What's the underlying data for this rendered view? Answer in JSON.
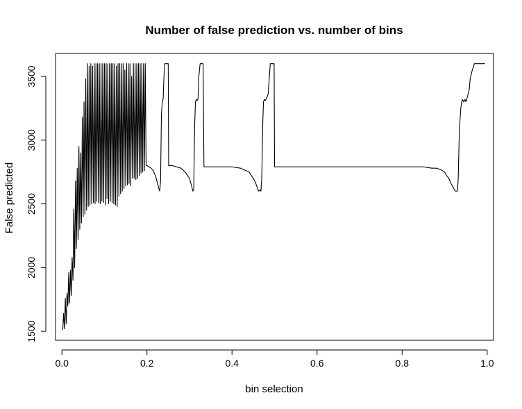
{
  "chart_data": {
    "type": "line",
    "title": "Number of false prediction vs. number of bins",
    "xlabel": "bin selection",
    "ylabel": "False predicted",
    "xlim": [
      -0.015,
      1.015
    ],
    "ylim": [
      1430,
      3680
    ],
    "x_ticks": [
      0.0,
      0.2,
      0.4,
      0.6,
      0.8,
      1.0
    ],
    "x_tick_labels": [
      "0.0",
      "0.2",
      "0.4",
      "0.6",
      "0.8",
      "1.0"
    ],
    "y_ticks": [
      1500,
      2000,
      2500,
      3000,
      3500
    ],
    "y_tick_labels": [
      "1500",
      "2000",
      "2500",
      "3000",
      "3500"
    ],
    "grid": false,
    "legend": "none",
    "line_color": "#000000",
    "series": [
      {
        "x": [
          0.002,
          0.004,
          0.006,
          0.008,
          0.01,
          0.012,
          0.014,
          0.016,
          0.018,
          0.02,
          0.022,
          0.024,
          0.026,
          0.028,
          0.03,
          0.032,
          0.034,
          0.036,
          0.038,
          0.04,
          0.042,
          0.044,
          0.046,
          0.048,
          0.05,
          0.052,
          0.054,
          0.056,
          0.058,
          0.06,
          0.062,
          0.064,
          0.066,
          0.068,
          0.07,
          0.072,
          0.074,
          0.076,
          0.078,
          0.08,
          0.082,
          0.084,
          0.086,
          0.088,
          0.09,
          0.092,
          0.094,
          0.096,
          0.098,
          0.1,
          0.102,
          0.104,
          0.106,
          0.108,
          0.11,
          0.112,
          0.114,
          0.116,
          0.118,
          0.12,
          0.122,
          0.124,
          0.126,
          0.128,
          0.13,
          0.132,
          0.134,
          0.136,
          0.138,
          0.14,
          0.142,
          0.144,
          0.146,
          0.148,
          0.15,
          0.152,
          0.154,
          0.156,
          0.158,
          0.16,
          0.162,
          0.164,
          0.166,
          0.168,
          0.17,
          0.172,
          0.174,
          0.176,
          0.178,
          0.18,
          0.182,
          0.184,
          0.186,
          0.188,
          0.19,
          0.192,
          0.194,
          0.196,
          0.198,
          0.2,
          0.205,
          0.21,
          0.215,
          0.22,
          0.225,
          0.228,
          0.23,
          0.232,
          0.234,
          0.236,
          0.238,
          0.24,
          0.242,
          0.245,
          0.248,
          0.25,
          0.251,
          0.26,
          0.27,
          0.28,
          0.29,
          0.3,
          0.305,
          0.308,
          0.31,
          0.312,
          0.314,
          0.316,
          0.318,
          0.32,
          0.322,
          0.325,
          0.328,
          0.332,
          0.334,
          0.34,
          0.36,
          0.38,
          0.4,
          0.42,
          0.44,
          0.45,
          0.455,
          0.46,
          0.463,
          0.466,
          0.468,
          0.47,
          0.472,
          0.474,
          0.476,
          0.478,
          0.48,
          0.485,
          0.49,
          0.495,
          0.499,
          0.5,
          0.55,
          0.6,
          0.65,
          0.7,
          0.75,
          0.8,
          0.85,
          0.87,
          0.88,
          0.89,
          0.9,
          0.905,
          0.91,
          0.915,
          0.92,
          0.925,
          0.928,
          0.93,
          0.932,
          0.934,
          0.936,
          0.938,
          0.94,
          0.942,
          0.945,
          0.948,
          0.95,
          0.952,
          0.955,
          0.958,
          0.96,
          0.965,
          0.97,
          0.975,
          0.98,
          0.985,
          0.99,
          0.995
        ],
        "y": [
          1510,
          1640,
          1520,
          1760,
          1560,
          1800,
          1700,
          1960,
          1720,
          1980,
          1780,
          2080,
          1900,
          2460,
          2000,
          2680,
          2150,
          2780,
          2220,
          2950,
          2300,
          2900,
          2350,
          3180,
          2400,
          3300,
          2420,
          3480,
          2450,
          3600,
          2480,
          3580,
          2490,
          3600,
          2500,
          3580,
          2510,
          3600,
          2500,
          3600,
          2520,
          3600,
          2510,
          3600,
          2500,
          3600,
          2520,
          3600,
          2510,
          3600,
          2490,
          3600,
          2540,
          3600,
          2500,
          3600,
          2520,
          3600,
          2510,
          3600,
          2500,
          3600,
          2490,
          3580,
          2480,
          3600,
          2560,
          3600,
          2580,
          3600,
          2600,
          3600,
          2620,
          3550,
          2640,
          3600,
          2650,
          3600,
          2660,
          3600,
          2640,
          3500,
          2700,
          3600,
          2700,
          3600,
          2690,
          3600,
          2700,
          3600,
          2720,
          3600,
          2740,
          3600,
          2750,
          3600,
          2760,
          3600,
          2800,
          2800,
          2790,
          2780,
          2760,
          2720,
          2660,
          2620,
          2600,
          2680,
          3200,
          3300,
          3320,
          3500,
          3600,
          3600,
          3600,
          3600,
          2800,
          2800,
          2790,
          2780,
          2750,
          2700,
          2640,
          2600,
          2610,
          3100,
          3300,
          3320,
          3310,
          3320,
          3500,
          3600,
          3600,
          3600,
          2790,
          2790,
          2790,
          2790,
          2790,
          2780,
          2750,
          2700,
          2670,
          2620,
          2600,
          2610,
          2600,
          2700,
          3100,
          3300,
          3320,
          3310,
          3320,
          3360,
          3600,
          3600,
          3600,
          2790,
          2790,
          2790,
          2790,
          2790,
          2790,
          2790,
          2790,
          2780,
          2780,
          2770,
          2750,
          2720,
          2700,
          2660,
          2630,
          2600,
          2600,
          2600,
          2700,
          3000,
          3150,
          3250,
          3300,
          3320,
          3300,
          3320,
          3300,
          3320,
          3360,
          3400,
          3480,
          3550,
          3600,
          3600,
          3600,
          3600,
          3600,
          3600
        ]
      }
    ]
  }
}
